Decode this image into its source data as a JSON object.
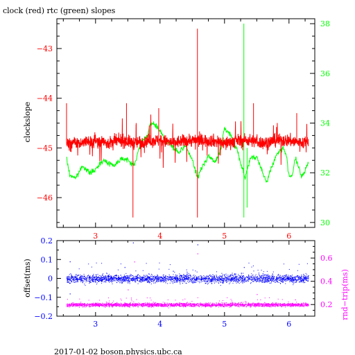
{
  "header": {
    "title": "clock (red) rtc (green) slopes"
  },
  "footer": {
    "caption": "2017-01-02  boson.physics.ubc.ca"
  },
  "colors": {
    "clock": "#ff0000",
    "rtc": "#00ff00",
    "offset": "#0000ff",
    "rndtrip": "#ff00ff",
    "axis": "#000000"
  },
  "chart_data": [
    {
      "id": "slopes",
      "type": "line",
      "title": "clock (red) rtc (green) slopes",
      "ylabel": "clockslope",
      "y2label": "",
      "x_ticks": [
        3,
        4,
        5,
        6
      ],
      "xlim": [
        2.4,
        6.4
      ],
      "ylim": [
        -46.6,
        -42.4
      ],
      "y_ticks": [
        -46,
        -45,
        -44,
        -43
      ],
      "y2lim": [
        29.8,
        38.2
      ],
      "y2_ticks": [
        30,
        32,
        34,
        36,
        38
      ],
      "grid": false,
      "series": [
        {
          "axis": "left",
          "color": "red",
          "spikes": [
            [
              2.55,
              -44.1
            ],
            [
              3.48,
              -44.1
            ],
            [
              3.58,
              -46.4
            ],
            [
              3.63,
              -44.5
            ],
            [
              3.98,
              -44.2
            ],
            [
              4.58,
              -42.6
            ],
            [
              4.58,
              -46.4
            ],
            [
              5.45,
              -44.1
            ],
            [
              6.12,
              -44.3
            ]
          ],
          "points": [
            [
              2.55,
              -44.9
            ],
            [
              2.8,
              -44.9
            ],
            [
              3.0,
              -44.85
            ],
            [
              3.2,
              -44.9
            ],
            [
              3.4,
              -44.85
            ],
            [
              3.6,
              -44.9
            ],
            [
              3.8,
              -44.85
            ],
            [
              4.0,
              -44.85
            ],
            [
              4.2,
              -44.9
            ],
            [
              4.4,
              -44.85
            ],
            [
              4.6,
              -44.85
            ],
            [
              4.8,
              -44.85
            ],
            [
              5.0,
              -44.9
            ],
            [
              5.2,
              -44.85
            ],
            [
              5.4,
              -44.85
            ],
            [
              5.6,
              -44.9
            ],
            [
              5.8,
              -44.85
            ],
            [
              6.0,
              -44.85
            ],
            [
              6.2,
              -44.9
            ],
            [
              6.3,
              -44.85
            ]
          ]
        },
        {
          "axis": "right",
          "color": "green",
          "spikes": [
            [
              5.3,
              38.0
            ],
            [
              5.3,
              30.2
            ],
            [
              5.35,
              30.6
            ]
          ],
          "points": [
            [
              2.55,
              32.6
            ],
            [
              2.6,
              31.9
            ],
            [
              2.7,
              31.8
            ],
            [
              2.8,
              32.3
            ],
            [
              2.9,
              32.0
            ],
            [
              3.0,
              32.1
            ],
            [
              3.1,
              32.5
            ],
            [
              3.2,
              32.4
            ],
            [
              3.3,
              32.3
            ],
            [
              3.4,
              32.6
            ],
            [
              3.5,
              32.5
            ],
            [
              3.6,
              32.3
            ],
            [
              3.7,
              33.2
            ],
            [
              3.8,
              33.5
            ],
            [
              3.85,
              33.9
            ],
            [
              3.9,
              34.0
            ],
            [
              4.0,
              33.7
            ],
            [
              4.1,
              33.3
            ],
            [
              4.2,
              33.0
            ],
            [
              4.3,
              32.8
            ],
            [
              4.4,
              33.1
            ],
            [
              4.5,
              32.5
            ],
            [
              4.58,
              31.8
            ],
            [
              4.65,
              32.2
            ],
            [
              4.75,
              32.7
            ],
            [
              4.85,
              32.4
            ],
            [
              4.95,
              33.0
            ],
            [
              5.0,
              33.8
            ],
            [
              5.1,
              33.5
            ],
            [
              5.2,
              32.9
            ],
            [
              5.25,
              32.4
            ],
            [
              5.32,
              31.8
            ],
            [
              5.4,
              32.6
            ],
            [
              5.5,
              32.6
            ],
            [
              5.6,
              32.0
            ],
            [
              5.65,
              31.6
            ],
            [
              5.7,
              32.0
            ],
            [
              5.8,
              32.7
            ],
            [
              5.9,
              33.0
            ],
            [
              5.95,
              32.8
            ],
            [
              6.0,
              31.9
            ],
            [
              6.05,
              31.9
            ],
            [
              6.1,
              32.6
            ],
            [
              6.15,
              32.2
            ],
            [
              6.2,
              31.8
            ],
            [
              6.3,
              32.4
            ]
          ]
        }
      ]
    },
    {
      "id": "offsets",
      "type": "scatter",
      "ylabel": "offset(ms)",
      "y2label": "rnd−trip(ms)",
      "x_ticks": [
        3,
        4,
        5,
        6
      ],
      "xlim": [
        2.4,
        6.4
      ],
      "ylim": [
        -0.2,
        0.2
      ],
      "y_ticks": [
        -0.2,
        -0.1,
        0,
        0.1,
        0.2
      ],
      "y_tick_labels": [
        "−0.2",
        "−0.1",
        "0",
        "0.1",
        "0.2"
      ],
      "y2lim": [
        0.1,
        0.75
      ],
      "y2_ticks": [
        0.2,
        0.4,
        0.6
      ],
      "grid": false,
      "series": [
        {
          "axis": "left",
          "color": "blue",
          "x_range": [
            2.55,
            6.3
          ],
          "center": 0.0,
          "spread": 0.02,
          "outliers": [
            [
              2.6,
              0.09
            ],
            [
              2.6,
              -0.08
            ],
            [
              3.45,
              0.06
            ],
            [
              3.58,
              0.19
            ],
            [
              4.58,
              0.18
            ],
            [
              4.2,
              0.04
            ],
            [
              5.3,
              0.06
            ]
          ]
        },
        {
          "axis": "right",
          "color": "magenta",
          "x_range": [
            2.55,
            6.3
          ],
          "center": 0.2,
          "spread": 0.015,
          "outliers": [
            [
              3.6,
              0.57
            ],
            [
              4.58,
              0.64
            ],
            [
              3.5,
              0.33
            ],
            [
              5.5,
              0.29
            ]
          ]
        }
      ]
    }
  ]
}
